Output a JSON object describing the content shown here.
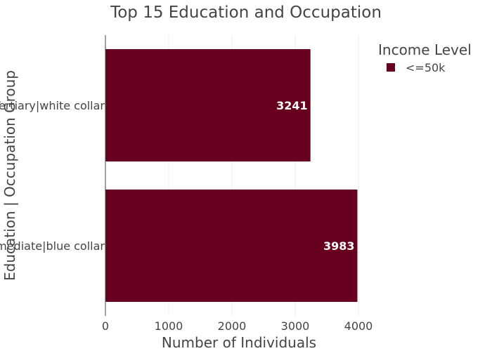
{
  "chart_data": {
    "type": "bar",
    "orientation": "horizontal",
    "title": "Top 15 Education and Occupation",
    "xlabel": "Number of Individuals",
    "ylabel": "Education | Occupation Group",
    "xlim": [
      0,
      4000
    ],
    "xticks": [
      0,
      1000,
      2000,
      3000,
      4000
    ],
    "grid": true,
    "legend_placement": "top-right",
    "legend_title": "Income Level",
    "categories": [
      "Tertiary|white collar",
      "Intermediate|blue collar"
    ],
    "series": [
      {
        "name": "<=50k",
        "color": "#67001f",
        "values": [
          3241,
          3983
        ]
      }
    ],
    "bar_color": "#67001f"
  }
}
